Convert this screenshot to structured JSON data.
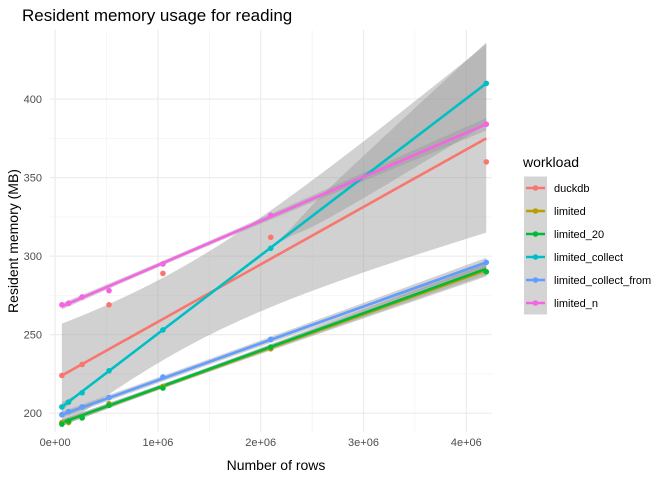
{
  "chart_data": {
    "type": "scatter",
    "title": "Resident memory usage for reading",
    "xlabel": "Number of rows",
    "ylabel": "Resident memory (MB)",
    "xlim": [
      -50000,
      4250000
    ],
    "ylim": [
      188,
      444
    ],
    "x_ticks": [
      0,
      1000000,
      2000000,
      3000000,
      4000000
    ],
    "x_tick_labels": [
      "0e+00",
      "1e+06",
      "2e+06",
      "3e+06",
      "4e+06"
    ],
    "y_ticks": [
      200,
      250,
      300,
      350,
      400
    ],
    "y_tick_labels": [
      "200",
      "250",
      "300",
      "350",
      "400"
    ],
    "grid": true,
    "legend": {
      "title": "workload",
      "placement": "right"
    },
    "trend": "linear fit with confidence band",
    "series": [
      {
        "name": "duckdb",
        "color": "#F8766D",
        "points": [
          [
            65536,
            224
          ],
          [
            131072,
            195
          ],
          [
            262144,
            231
          ],
          [
            524288,
            269
          ],
          [
            1048576,
            289
          ],
          [
            2097152,
            312
          ],
          [
            4194304,
            360
          ]
        ],
        "fit": [
          224,
          375
        ],
        "band_halfwidth": [
          33,
          60
        ]
      },
      {
        "name": "limited",
        "color": "#B79F00",
        "points": [
          [
            65536,
            194
          ],
          [
            131072,
            194
          ],
          [
            262144,
            197
          ],
          [
            524288,
            206
          ],
          [
            1048576,
            217
          ],
          [
            2097152,
            241
          ],
          [
            4194304,
            290
          ]
        ],
        "fit": [
          194,
          291
        ],
        "band_halfwidth": [
          2,
          4
        ]
      },
      {
        "name": "limited_20",
        "color": "#00BA38",
        "points": [
          [
            65536,
            193
          ],
          [
            131072,
            195
          ],
          [
            262144,
            197
          ],
          [
            524288,
            205
          ],
          [
            1048576,
            216
          ],
          [
            2097152,
            242
          ],
          [
            4194304,
            290
          ]
        ],
        "fit": [
          194,
          292
        ],
        "band_halfwidth": [
          2,
          4
        ]
      },
      {
        "name": "limited_collect",
        "color": "#00BFC4",
        "points": [
          [
            65536,
            204
          ],
          [
            131072,
            207
          ],
          [
            262144,
            213
          ],
          [
            524288,
            227
          ],
          [
            1048576,
            253
          ],
          [
            2097152,
            305
          ],
          [
            4194304,
            410
          ]
        ],
        "fit": [
          204,
          410
        ],
        "band_halfwidth": [
          3,
          26
        ]
      },
      {
        "name": "limited_collect_from",
        "color": "#619CFF",
        "points": [
          [
            65536,
            199
          ],
          [
            131072,
            201
          ],
          [
            262144,
            204
          ],
          [
            524288,
            210
          ],
          [
            1048576,
            223
          ],
          [
            2097152,
            247
          ],
          [
            4194304,
            296
          ]
        ],
        "fit": [
          199,
          296
        ],
        "band_halfwidth": [
          2,
          3
        ]
      },
      {
        "name": "limited_n",
        "color": "#F564E3",
        "points": [
          [
            65536,
            269
          ],
          [
            131072,
            270
          ],
          [
            262144,
            274
          ],
          [
            524288,
            278
          ],
          [
            1048576,
            295
          ],
          [
            2097152,
            326
          ],
          [
            4194304,
            384
          ]
        ],
        "fit": [
          268,
          384
        ],
        "band_halfwidth": [
          2,
          4
        ]
      }
    ]
  }
}
